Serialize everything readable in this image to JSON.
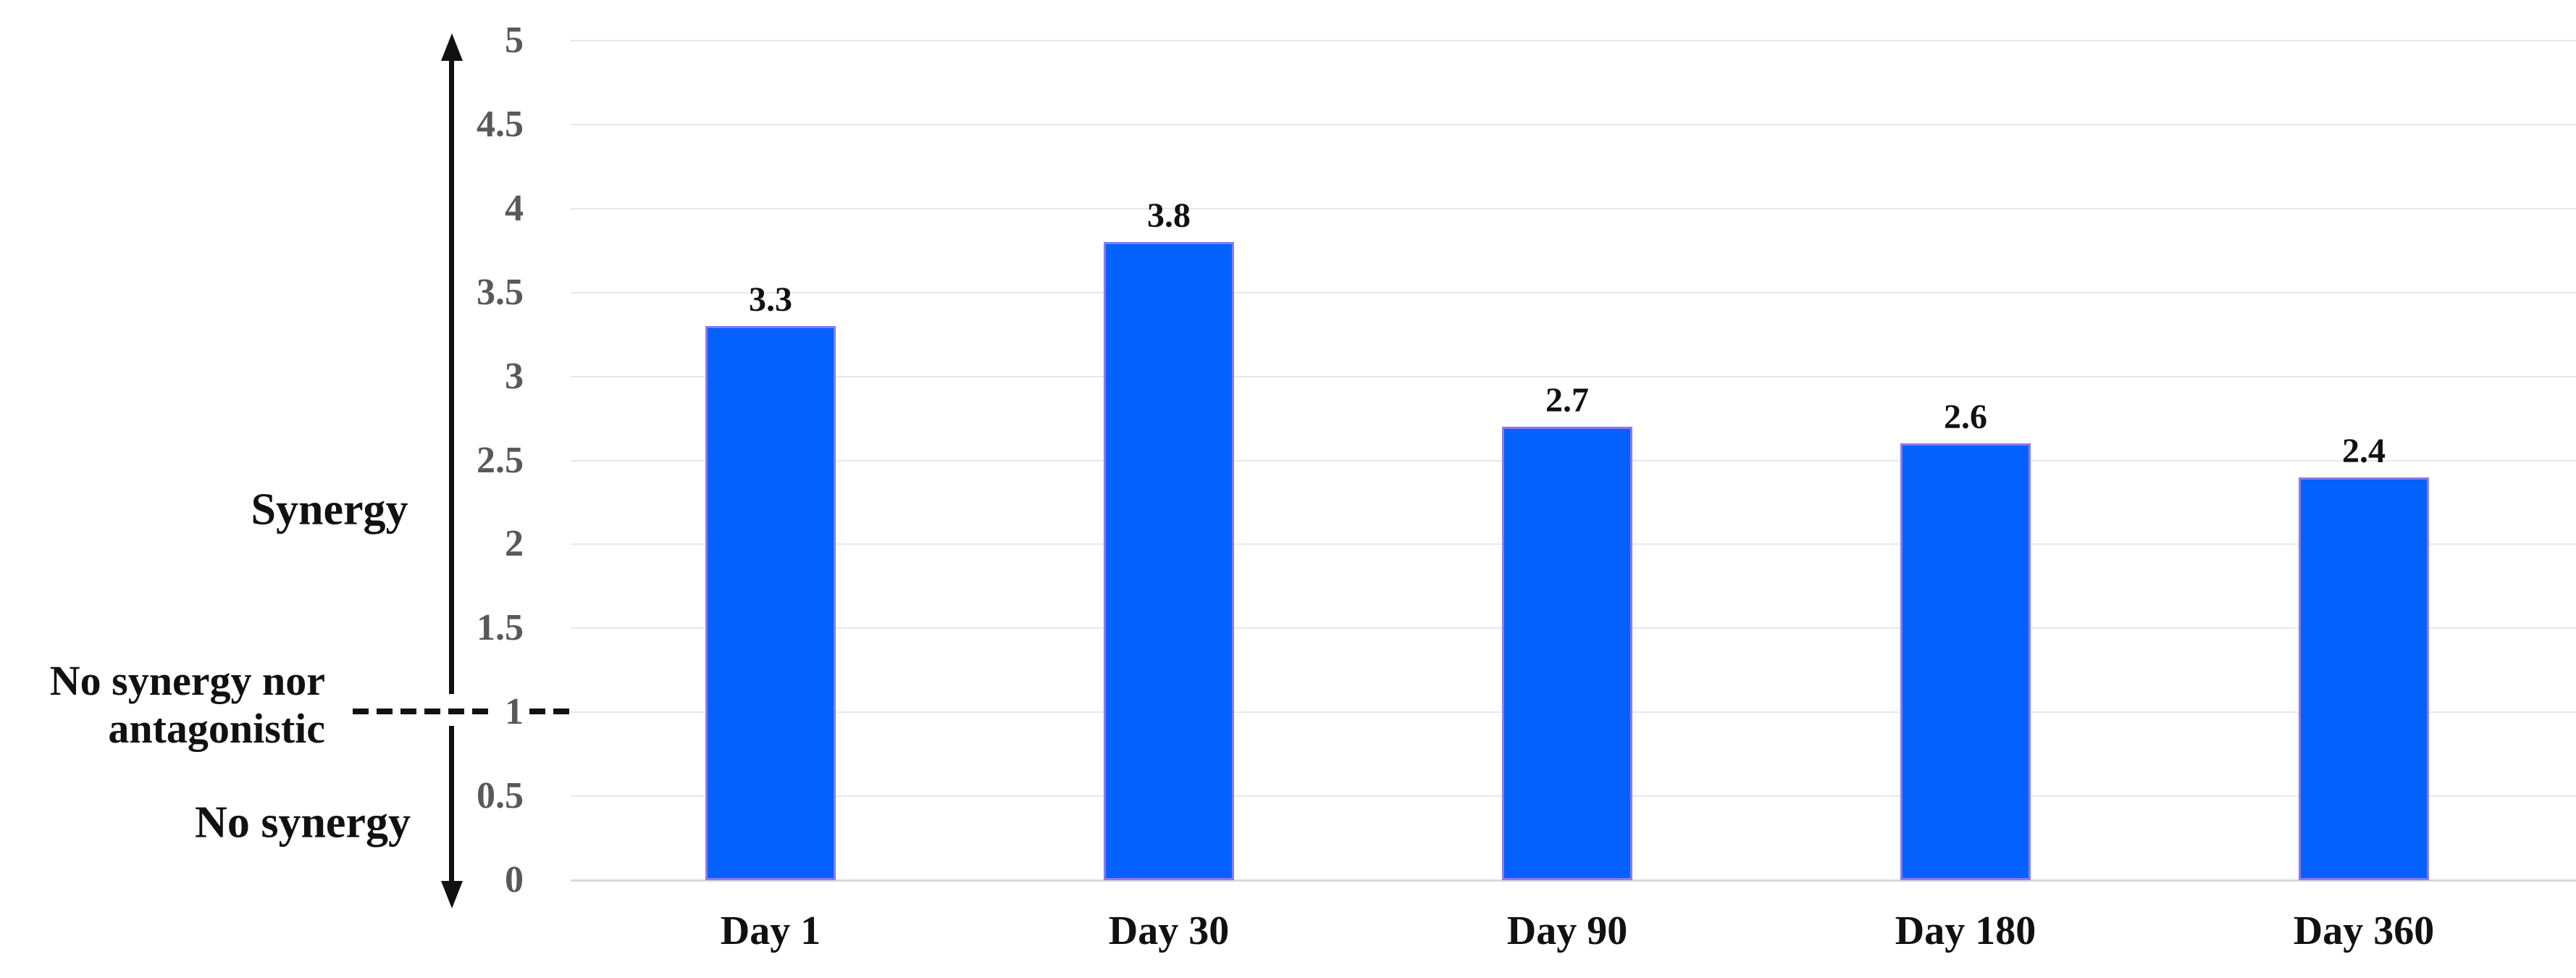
{
  "chart_data": {
    "type": "bar",
    "title": "",
    "xlabel": "",
    "ylabel": "",
    "categories": [
      "Day 1",
      "Day 30",
      "Day 90",
      "Day 180",
      "Day 360"
    ],
    "values": [
      3.3,
      3.8,
      2.7,
      2.6,
      2.4
    ],
    "value_labels": [
      "3.3",
      "3.8",
      "2.7",
      "2.6",
      "2.4"
    ],
    "ylim": [
      0,
      5
    ],
    "ytick_labels": [
      "5",
      "4.5",
      "4",
      "3.5",
      "3",
      "2.5",
      "2",
      "1.5",
      "1",
      "0.5",
      "0"
    ],
    "grid": true,
    "legend_position": "none",
    "reference_line": {
      "value": 1,
      "style": "dashed"
    },
    "y_axis_style": "double-headed-arrow",
    "colors": {
      "bar_fill": "#0561fb",
      "bar_border": "#8b7bee",
      "gridline": "#e8e8e8",
      "baseline": "#d9d9d9",
      "axis_arrow": "#111111",
      "tick_text": "#595959",
      "text": "#111111"
    }
  },
  "labels": {
    "synergy": "Synergy",
    "no_synergy_nor_antagonistic": "No synergy nor\nantagonistic",
    "no_synergy": "No synergy"
  }
}
